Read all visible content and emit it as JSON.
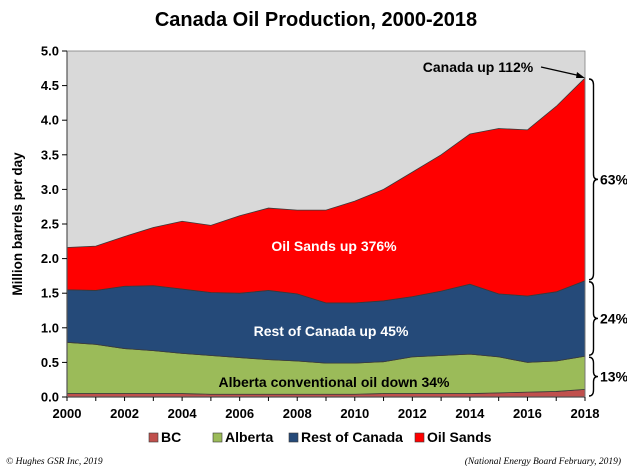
{
  "chart_data": {
    "type": "area",
    "stacked": true,
    "title": "Canada Oil Production, 2000-2018",
    "ylabel": "Million barrels per day",
    "xlabel": "",
    "xlim": [
      2000,
      2018
    ],
    "ylim": [
      0,
      5
    ],
    "x_ticks": [
      "2000",
      "2002",
      "2004",
      "2006",
      "2008",
      "2010",
      "2012",
      "2014",
      "2016",
      "2018"
    ],
    "y_ticks": [
      "0.0",
      "0.5",
      "1.0",
      "1.5",
      "2.0",
      "2.5",
      "3.0",
      "3.5",
      "4.0",
      "4.5",
      "5.0"
    ],
    "x": [
      2000,
      2001,
      2002,
      2003,
      2004,
      2005,
      2006,
      2007,
      2008,
      2009,
      2010,
      2011,
      2012,
      2013,
      2014,
      2015,
      2016,
      2017,
      2018
    ],
    "series": [
      {
        "name": "BC",
        "color": "#c0504d",
        "values": [
          0.05,
          0.05,
          0.05,
          0.05,
          0.05,
          0.04,
          0.04,
          0.04,
          0.04,
          0.04,
          0.04,
          0.05,
          0.05,
          0.05,
          0.05,
          0.06,
          0.07,
          0.08,
          0.11
        ]
      },
      {
        "name": "Alberta",
        "color": "#9bbb59",
        "values": [
          0.74,
          0.71,
          0.65,
          0.62,
          0.58,
          0.56,
          0.53,
          0.5,
          0.48,
          0.45,
          0.45,
          0.46,
          0.53,
          0.55,
          0.57,
          0.52,
          0.43,
          0.44,
          0.48
        ]
      },
      {
        "name": "Rest of Canada",
        "color": "#254a79",
        "values": [
          0.76,
          0.78,
          0.9,
          0.94,
          0.93,
          0.91,
          0.93,
          1.0,
          0.97,
          0.87,
          0.87,
          0.88,
          0.87,
          0.93,
          1.01,
          0.91,
          0.96,
          1.0,
          1.09
        ]
      },
      {
        "name": "Oil Sands",
        "color": "#ff0000",
        "values": [
          0.61,
          0.64,
          0.72,
          0.84,
          0.98,
          0.97,
          1.12,
          1.19,
          1.21,
          1.34,
          1.47,
          1.61,
          1.8,
          1.97,
          2.17,
          2.39,
          2.4,
          2.68,
          2.93
        ]
      }
    ],
    "annotations": {
      "oil_sands": "Oil Sands up 376%",
      "rest": "Rest of Canada up 45%",
      "alberta": "Alberta conventional oil down 34%",
      "canada": "Canada up 112%",
      "share_oil_sands": "63%",
      "share_rest": "24%",
      "share_conventional": "13%"
    },
    "legend_position": "bottom",
    "grid": false
  },
  "footer": {
    "left": "© Hughes GSR Inc, 2019",
    "right": "(National Energy Board February, 2019)"
  }
}
